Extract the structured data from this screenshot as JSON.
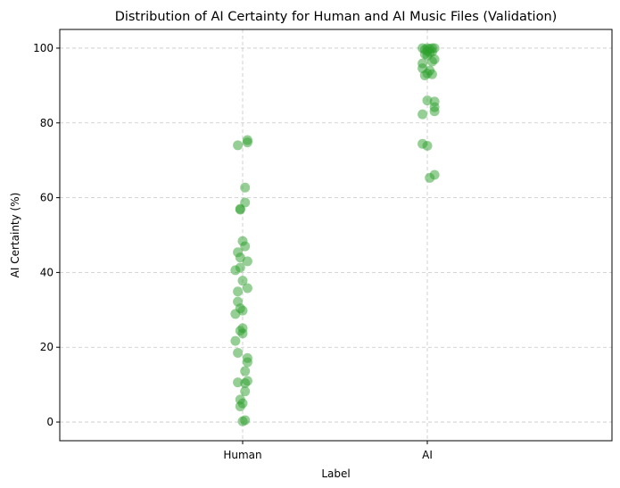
{
  "chart_data": {
    "type": "scatter",
    "subtype": "strip",
    "title": "Distribution of AI Certainty for Human and AI Music Files (Validation)",
    "xlabel": "Label",
    "ylabel": "AI Certainty (%)",
    "categories": [
      "Human",
      "AI"
    ],
    "ylim": [
      -5,
      105
    ],
    "yticks": [
      0,
      20,
      40,
      60,
      80,
      100
    ],
    "grid": true,
    "point_color": "#2ca02c",
    "series": [
      {
        "category": "Human",
        "points": [
          [
            -0.02,
            74.0
          ],
          [
            0.02,
            75.4
          ],
          [
            0.02,
            74.8
          ],
          [
            0.01,
            62.7
          ],
          [
            0.01,
            58.7
          ],
          [
            -0.01,
            57.0
          ],
          [
            -0.01,
            56.8
          ],
          [
            0.0,
            48.4
          ],
          [
            0.01,
            47.0
          ],
          [
            -0.02,
            45.4
          ],
          [
            -0.01,
            44.0
          ],
          [
            0.02,
            43.0
          ],
          [
            -0.01,
            41.3
          ],
          [
            -0.03,
            40.6
          ],
          [
            0.0,
            37.8
          ],
          [
            0.02,
            35.8
          ],
          [
            -0.02,
            34.9
          ],
          [
            -0.02,
            32.2
          ],
          [
            -0.01,
            30.4
          ],
          [
            0.0,
            29.8
          ],
          [
            -0.03,
            28.9
          ],
          [
            0.0,
            25.1
          ],
          [
            -0.01,
            24.4
          ],
          [
            0.0,
            23.7
          ],
          [
            -0.03,
            21.7
          ],
          [
            -0.02,
            18.5
          ],
          [
            0.02,
            17.1
          ],
          [
            0.02,
            16.0
          ],
          [
            0.01,
            13.6
          ],
          [
            0.02,
            11.0
          ],
          [
            0.01,
            10.4
          ],
          [
            -0.02,
            10.6
          ],
          [
            0.01,
            8.2
          ],
          [
            -0.01,
            6.0
          ],
          [
            0.0,
            5.0
          ],
          [
            -0.01,
            4.2
          ],
          [
            0.01,
            0.5
          ],
          [
            0.0,
            0.2
          ]
        ]
      },
      {
        "category": "AI",
        "points": [
          [
            -0.02,
            100.0
          ],
          [
            0.0,
            100.0
          ],
          [
            0.02,
            100.0
          ],
          [
            0.03,
            100.0
          ],
          [
            0.01,
            99.8
          ],
          [
            -0.01,
            99.6
          ],
          [
            0.0,
            99.2
          ],
          [
            0.02,
            99.0
          ],
          [
            0.01,
            98.8
          ],
          [
            -0.01,
            98.4
          ],
          [
            0.0,
            98.0
          ],
          [
            0.03,
            97.0
          ],
          [
            0.02,
            96.4
          ],
          [
            -0.02,
            95.9
          ],
          [
            -0.02,
            94.6
          ],
          [
            0.01,
            94.0
          ],
          [
            0.0,
            93.2
          ],
          [
            -0.01,
            92.7
          ],
          [
            0.02,
            93.0
          ],
          [
            0.0,
            86.0
          ],
          [
            0.03,
            85.7
          ],
          [
            0.03,
            84.2
          ],
          [
            0.03,
            83.1
          ],
          [
            -0.02,
            82.3
          ],
          [
            -0.02,
            74.4
          ],
          [
            0.0,
            73.9
          ],
          [
            0.03,
            66.1
          ],
          [
            0.01,
            65.3
          ]
        ]
      }
    ]
  }
}
